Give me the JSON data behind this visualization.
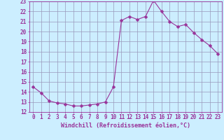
{
  "x": [
    0,
    1,
    2,
    3,
    4,
    5,
    6,
    7,
    8,
    9,
    10,
    11,
    12,
    13,
    14,
    15,
    16,
    17,
    18,
    19,
    20,
    21,
    22,
    23
  ],
  "y": [
    14.5,
    13.9,
    13.1,
    12.9,
    12.8,
    12.6,
    12.6,
    12.7,
    12.8,
    13.0,
    14.5,
    21.1,
    21.5,
    21.2,
    21.5,
    23.1,
    22.0,
    21.0,
    20.5,
    20.7,
    19.9,
    19.2,
    18.6,
    17.8
  ],
  "xlabel": "Windchill (Refroidissement éolien,°C)",
  "line_color": "#993399",
  "marker": "D",
  "marker_size": 2.5,
  "bg_color": "#cceeff",
  "grid_color": "#9999bb",
  "ylim": [
    12,
    23
  ],
  "yticks": [
    12,
    13,
    14,
    15,
    16,
    17,
    18,
    19,
    20,
    21,
    22,
    23
  ],
  "xticks": [
    0,
    1,
    2,
    3,
    4,
    5,
    6,
    7,
    8,
    9,
    10,
    11,
    12,
    13,
    14,
    15,
    16,
    17,
    18,
    19,
    20,
    21,
    22,
    23
  ],
  "tick_fontsize": 5.5,
  "label_fontsize": 6.0
}
